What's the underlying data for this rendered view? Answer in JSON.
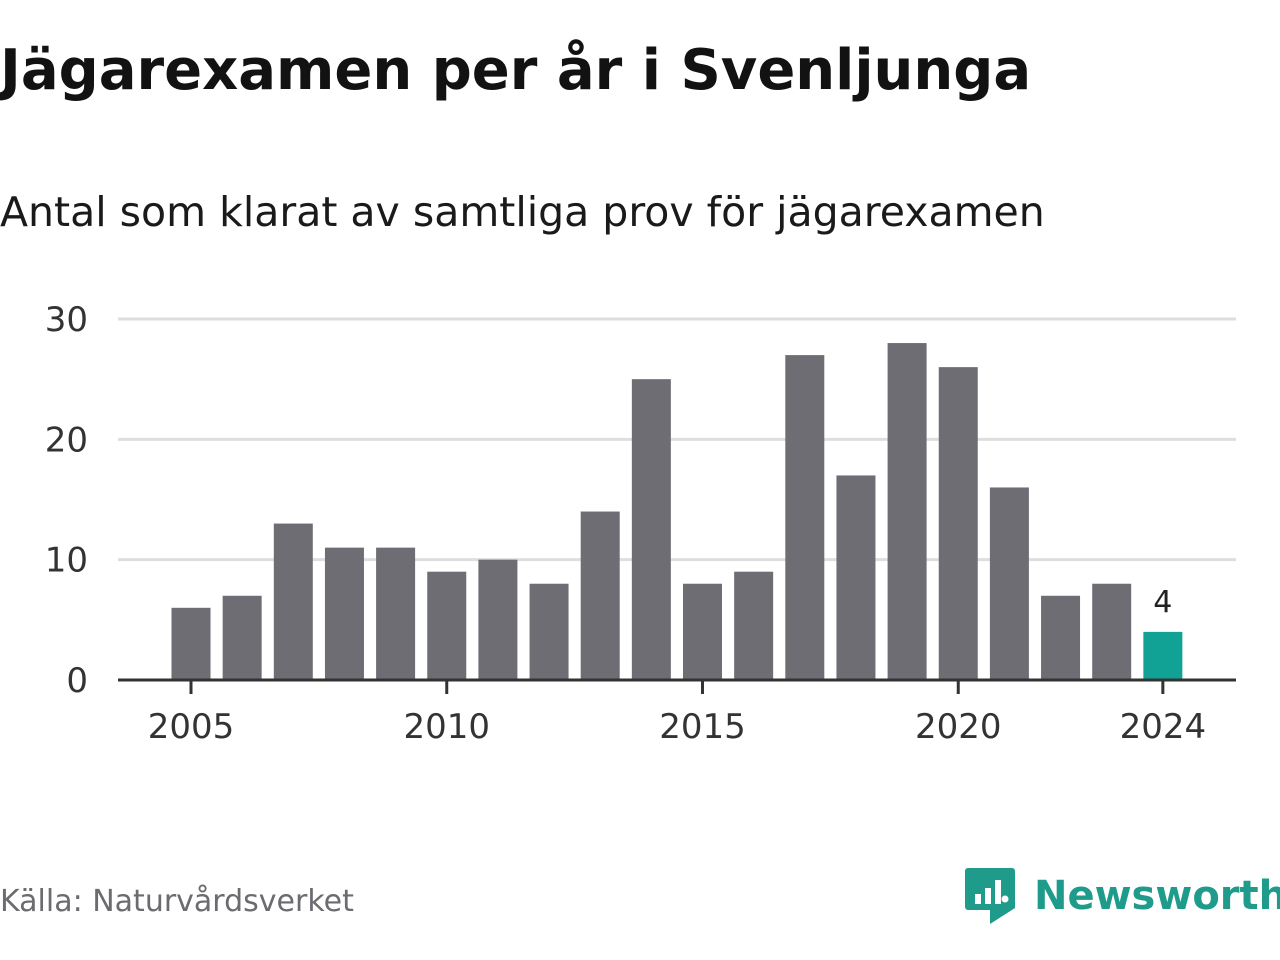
{
  "header": {
    "title": "Jägarexamen per år i Svenljunga",
    "subtitle": "Antal som klarat av samtliga prov för jägarexamen"
  },
  "footer": {
    "source": "Källa: Naturvårdsverket",
    "brand": "Newsworthy"
  },
  "colors": {
    "bar": "#6e6d74",
    "highlight": "#12a295",
    "grid": "#dedede",
    "axis": "#333333",
    "brand": "#1e9b8a"
  },
  "chart_data": {
    "type": "bar",
    "title": "Jägarexamen per år i Svenljunga",
    "subtitle": "Antal som klarat av samtliga prov för jägarexamen",
    "x": [
      2005,
      2006,
      2007,
      2008,
      2009,
      2010,
      2011,
      2012,
      2013,
      2014,
      2015,
      2016,
      2017,
      2018,
      2019,
      2020,
      2021,
      2022,
      2023,
      2024
    ],
    "values": [
      6,
      7,
      13,
      11,
      11,
      9,
      10,
      8,
      14,
      25,
      8,
      9,
      27,
      17,
      28,
      26,
      16,
      7,
      8,
      4
    ],
    "highlight_index": 19,
    "highlight_label": "4",
    "xticks": [
      "2005",
      "2010",
      "2015",
      "2020",
      "2024"
    ],
    "xtick_values": [
      2005,
      2010,
      2015,
      2020,
      2024
    ],
    "yticks": [
      "0",
      "10",
      "20",
      "30"
    ],
    "ytick_values": [
      0,
      10,
      20,
      30
    ],
    "ylim": [
      0,
      30
    ],
    "xlabel": "",
    "ylabel": "",
    "grid": true,
    "legend": "none"
  }
}
